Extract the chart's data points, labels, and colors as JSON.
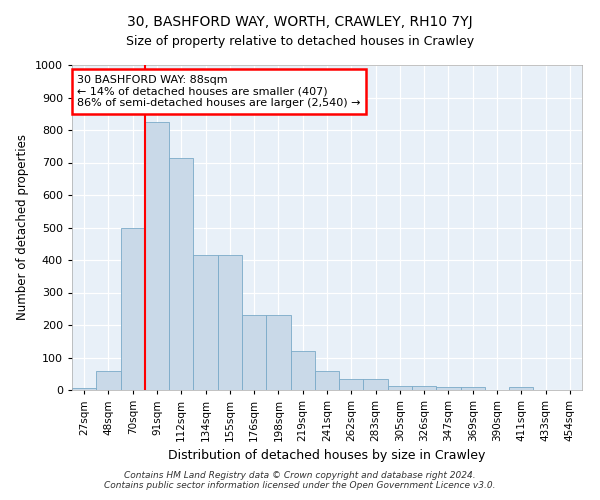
{
  "title": "30, BASHFORD WAY, WORTH, CRAWLEY, RH10 7YJ",
  "subtitle": "Size of property relative to detached houses in Crawley",
  "xlabel": "Distribution of detached houses by size in Crawley",
  "ylabel": "Number of detached properties",
  "bar_labels": [
    "27sqm",
    "48sqm",
    "70sqm",
    "91sqm",
    "112sqm",
    "134sqm",
    "155sqm",
    "176sqm",
    "198sqm",
    "219sqm",
    "241sqm",
    "262sqm",
    "283sqm",
    "305sqm",
    "326sqm",
    "347sqm",
    "369sqm",
    "390sqm",
    "411sqm",
    "433sqm",
    "454sqm"
  ],
  "bar_values": [
    5,
    60,
    500,
    825,
    715,
    415,
    415,
    230,
    230,
    120,
    58,
    35,
    35,
    12,
    12,
    10,
    10,
    0,
    10,
    0,
    0
  ],
  "bar_color": "#c9d9e8",
  "bar_edgecolor": "#7aaac8",
  "vline_index": 3,
  "vline_color": "red",
  "ylim": [
    0,
    1000
  ],
  "yticks": [
    0,
    100,
    200,
    300,
    400,
    500,
    600,
    700,
    800,
    900,
    1000
  ],
  "annotation_text": "30 BASHFORD WAY: 88sqm\n← 14% of detached houses are smaller (407)\n86% of semi-detached houses are larger (2,540) →",
  "annotation_box_color": "white",
  "annotation_box_edgecolor": "red",
  "footer_line1": "Contains HM Land Registry data © Crown copyright and database right 2024.",
  "footer_line2": "Contains public sector information licensed under the Open Government Licence v3.0.",
  "background_color": "#e8f0f8",
  "plot_bg_color": "white",
  "title_fontsize": 10,
  "subtitle_fontsize": 9
}
